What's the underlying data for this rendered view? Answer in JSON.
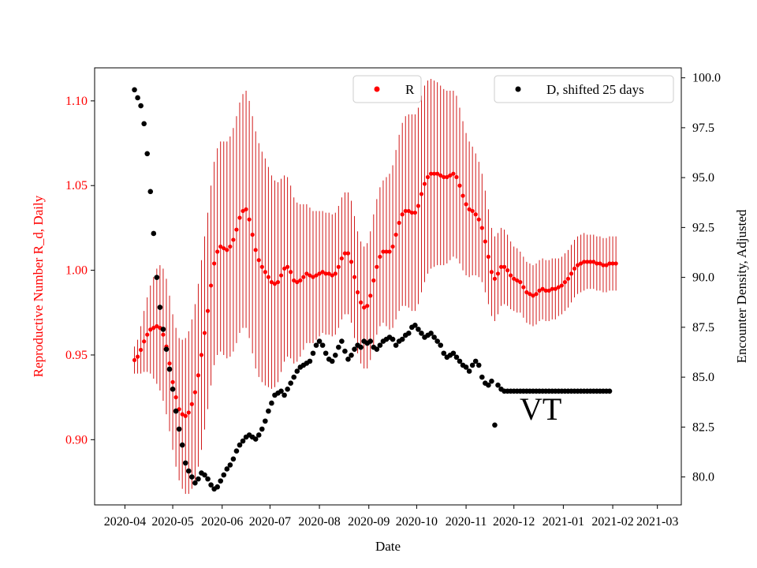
{
  "chart_data": {
    "type": "scatter",
    "title": "",
    "xlabel": "Date",
    "ylabel_left": "Reproductive Number R_d, Daily",
    "ylabel_right": "Encounter Density, Adjusted",
    "x_ticks": [
      "2020-04",
      "2020-05",
      "2020-06",
      "2020-07",
      "2020-08",
      "2020-09",
      "2020-10",
      "2020-11",
      "2020-12",
      "2021-01",
      "2021-02",
      "2021-03"
    ],
    "x_range": [
      "2020-03-13",
      "2021-03-16"
    ],
    "y_left_ticks": [
      "0.90",
      "0.95",
      "1.00",
      "1.05",
      "1.10"
    ],
    "y_left_lim": [
      0.8615,
      1.1195
    ],
    "y_right_ticks": [
      "80.0",
      "82.5",
      "85.0",
      "87.5",
      "90.0",
      "92.5",
      "95.0",
      "97.5",
      "100.0"
    ],
    "y_right_lim": [
      78.6,
      100.5
    ],
    "annotation": "VT",
    "colors": {
      "r_series": "#ff0000",
      "r_errorbar": "#cc0000",
      "d_series": "#000000",
      "left_axis_text": "#ff0000"
    },
    "legend": [
      {
        "label": "R",
        "placement": "top-center",
        "color": "#ff0000"
      },
      {
        "label": "D, shifted 25 days",
        "placement": "top-right",
        "color": "#000000"
      }
    ],
    "series": [
      {
        "name": "R",
        "axis": "left",
        "color": "#ff0000",
        "x_start": "2020-04-07",
        "step_days": 2,
        "values": [
          0.947,
          0.949,
          0.953,
          0.958,
          0.962,
          0.965,
          0.966,
          0.967,
          0.966,
          0.962,
          0.955,
          0.945,
          0.934,
          0.925,
          0.918,
          0.915,
          0.914,
          0.916,
          0.921,
          0.928,
          0.938,
          0.95,
          0.963,
          0.976,
          0.991,
          1.004,
          1.011,
          1.014,
          1.013,
          1.012,
          1.014,
          1.018,
          1.024,
          1.031,
          1.035,
          1.036,
          1.03,
          1.021,
          1.012,
          1.006,
          1.002,
          0.999,
          0.996,
          0.993,
          0.992,
          0.993,
          0.997,
          1.001,
          1.002,
          0.999,
          0.994,
          0.993,
          0.994,
          0.996,
          0.998,
          0.997,
          0.996,
          0.997,
          0.998,
          0.999,
          0.998,
          0.998,
          0.997,
          0.998,
          1.002,
          1.007,
          1.01,
          1.01,
          1.005,
          0.996,
          0.987,
          0.981,
          0.978,
          0.979,
          0.985,
          0.994,
          1.002,
          1.008,
          1.011,
          1.011,
          1.011,
          1.014,
          1.021,
          1.028,
          1.033,
          1.035,
          1.035,
          1.034,
          1.034,
          1.038,
          1.045,
          1.051,
          1.055,
          1.057,
          1.057,
          1.057,
          1.056,
          1.055,
          1.055,
          1.056,
          1.057,
          1.055,
          1.05,
          1.044,
          1.039,
          1.036,
          1.035,
          1.033,
          1.03,
          1.025,
          1.017,
          1.008,
          0.999,
          0.995,
          0.998,
          1.002,
          1.002,
          1.0,
          0.997,
          0.995,
          0.994,
          0.993,
          0.99,
          0.987,
          0.986,
          0.985,
          0.986,
          0.988,
          0.989,
          0.988,
          0.988,
          0.989,
          0.989,
          0.99,
          0.991,
          0.993,
          0.995,
          0.998,
          1.001,
          1.003,
          1.004,
          1.005,
          1.005,
          1.005,
          1.005,
          1.004,
          1.004,
          1.003,
          1.003,
          1.004,
          1.004,
          1.004
        ],
        "error": [
          0.008,
          0.01,
          0.014,
          0.018,
          0.022,
          0.026,
          0.03,
          0.034,
          0.037,
          0.039,
          0.04,
          0.04,
          0.04,
          0.041,
          0.042,
          0.044,
          0.046,
          0.048,
          0.05,
          0.052,
          0.054,
          0.056,
          0.057,
          0.058,
          0.059,
          0.06,
          0.061,
          0.062,
          0.063,
          0.064,
          0.065,
          0.066,
          0.067,
          0.068,
          0.069,
          0.07,
          0.07,
          0.07,
          0.07,
          0.069,
          0.068,
          0.067,
          0.065,
          0.063,
          0.061,
          0.059,
          0.057,
          0.055,
          0.053,
          0.051,
          0.049,
          0.047,
          0.045,
          0.043,
          0.041,
          0.04,
          0.039,
          0.038,
          0.037,
          0.036,
          0.036,
          0.036,
          0.036,
          0.036,
          0.036,
          0.036,
          0.036,
          0.036,
          0.036,
          0.036,
          0.036,
          0.036,
          0.036,
          0.037,
          0.038,
          0.039,
          0.04,
          0.041,
          0.042,
          0.044,
          0.046,
          0.048,
          0.05,
          0.052,
          0.054,
          0.056,
          0.057,
          0.058,
          0.058,
          0.058,
          0.058,
          0.058,
          0.057,
          0.056,
          0.055,
          0.054,
          0.053,
          0.052,
          0.051,
          0.05,
          0.049,
          0.048,
          0.046,
          0.044,
          0.042,
          0.04,
          0.038,
          0.036,
          0.034,
          0.032,
          0.03,
          0.028,
          0.026,
          0.025,
          0.024,
          0.023,
          0.022,
          0.021,
          0.02,
          0.019,
          0.019,
          0.018,
          0.018,
          0.018,
          0.018,
          0.018,
          0.018,
          0.018,
          0.018,
          0.018,
          0.018,
          0.018,
          0.018,
          0.017,
          0.017,
          0.017,
          0.017,
          0.017,
          0.017,
          0.017,
          0.017,
          0.017,
          0.016,
          0.016,
          0.016,
          0.016,
          0.016,
          0.016,
          0.016,
          0.016,
          0.016,
          0.016
        ]
      },
      {
        "name": "D, shifted 25 days",
        "axis": "right",
        "color": "#000000",
        "x_start": "2020-04-07",
        "step_days": 2,
        "values": [
          99.4,
          99.0,
          98.6,
          97.7,
          96.2,
          94.3,
          92.2,
          90.0,
          88.5,
          87.4,
          86.4,
          85.4,
          84.4,
          83.3,
          82.4,
          81.6,
          80.7,
          80.3,
          80.0,
          79.7,
          79.9,
          80.2,
          80.1,
          79.9,
          79.6,
          79.4,
          79.5,
          79.8,
          80.1,
          80.4,
          80.6,
          80.9,
          81.3,
          81.6,
          81.8,
          82.0,
          82.1,
          82.0,
          81.9,
          82.1,
          82.4,
          82.8,
          83.3,
          83.7,
          84.1,
          84.2,
          84.3,
          84.1,
          84.4,
          84.7,
          85.0,
          85.3,
          85.5,
          85.6,
          85.7,
          85.8,
          86.2,
          86.6,
          86.8,
          86.6,
          86.2,
          85.9,
          85.8,
          86.1,
          86.5,
          86.8,
          86.3,
          85.9,
          86.1,
          86.4,
          86.6,
          86.5,
          86.8,
          86.7,
          86.8,
          86.5,
          86.4,
          86.6,
          86.8,
          86.9,
          87.0,
          86.9,
          86.6,
          86.8,
          86.9,
          87.1,
          87.2,
          87.5,
          87.6,
          87.4,
          87.2,
          87.0,
          87.1,
          87.2,
          87.0,
          86.8,
          86.6,
          86.2,
          86.0,
          86.1,
          86.2,
          86.0,
          85.8,
          85.6,
          85.5,
          85.3,
          85.6,
          85.8,
          85.6,
          85.0,
          84.7,
          84.6,
          84.8,
          82.6,
          84.6,
          84.4,
          84.3,
          84.3,
          84.3,
          84.3,
          84.3,
          84.3,
          84.3,
          84.3,
          84.3,
          84.3,
          84.3,
          84.3,
          84.3,
          84.3,
          84.3,
          84.3,
          84.3,
          84.3,
          84.3,
          84.3,
          84.3,
          84.3,
          84.3,
          84.3,
          84.3,
          84.3,
          84.3,
          84.3,
          84.3,
          84.3,
          84.3,
          84.3,
          84.3,
          84.3
        ]
      }
    ]
  }
}
